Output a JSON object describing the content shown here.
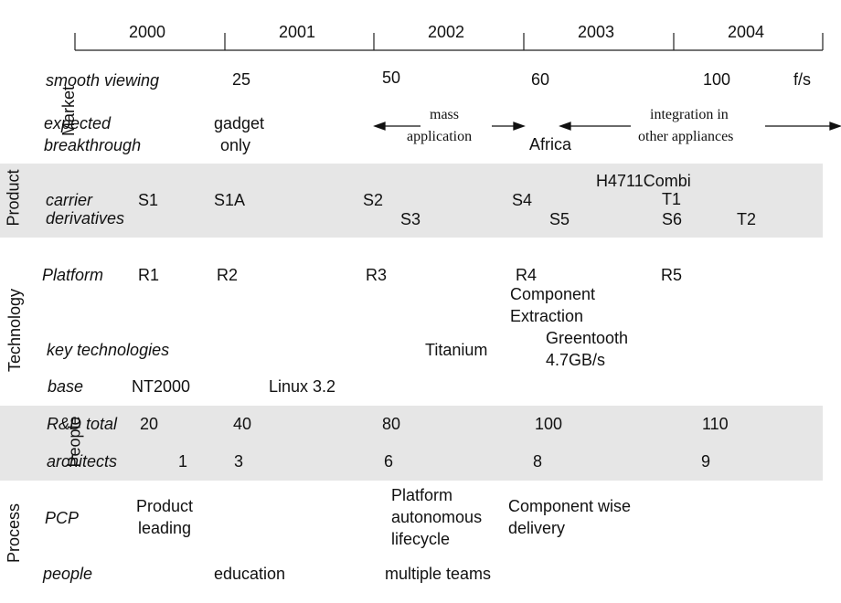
{
  "years": [
    "2000",
    "2001",
    "2002",
    "2003",
    "2004"
  ],
  "sections": {
    "market": "Market",
    "product": "Product",
    "technology": "Technology",
    "people": "People",
    "process": "Process"
  },
  "market": {
    "smooth_label": "smooth viewing",
    "smooth_values": [
      "25",
      "50",
      "60",
      "100"
    ],
    "smooth_unit": "f/s",
    "breakthrough_label_1": "expected",
    "breakthrough_label_2": "breakthrough",
    "gadget_1": "gadget",
    "gadget_2": "only",
    "mass_1": "mass",
    "mass_2": "application",
    "africa": "Africa",
    "integration_1": "integration in",
    "integration_2": "other appliances"
  },
  "product": {
    "label_1": "carrier",
    "label_2": "derivatives",
    "items": [
      "S1",
      "S1A",
      "S2",
      "S3",
      "S4",
      "S5",
      "H4711Combi",
      "T1",
      "S6",
      "T2"
    ]
  },
  "technology": {
    "platform_label": "Platform",
    "platforms": [
      "R1",
      "R2",
      "R3",
      "R4",
      "R5"
    ],
    "component_1": "Component",
    "component_2": "Extraction",
    "key_label": "key technologies",
    "titanium": "Titanium",
    "greentooth_1": "Greentooth",
    "greentooth_2": "4.7GB/s",
    "base_label": "base",
    "nt": "NT2000",
    "linux": "Linux 3.2"
  },
  "people": {
    "rd_label": "R&D total",
    "rd_values": [
      "20",
      "40",
      "80",
      "100",
      "110"
    ],
    "arch_label": "architects",
    "arch_values": [
      "1",
      "3",
      "6",
      "8",
      "9"
    ]
  },
  "process": {
    "pcp_label": "PCP",
    "product_leading_1": "Product",
    "product_leading_2": "leading",
    "platform_1": "Platform",
    "platform_2": "autonomous",
    "platform_3": "lifecycle",
    "component_1": "Component wise",
    "component_2": "delivery",
    "people_label": "people",
    "education": "education",
    "multiple": "multiple teams"
  }
}
